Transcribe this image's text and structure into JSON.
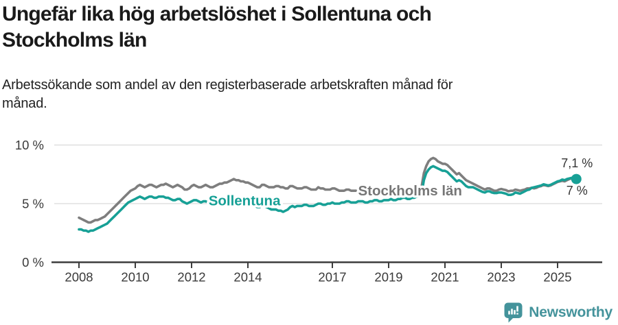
{
  "header": {
    "title_line1": "Ungefär lika hög arbetslöshet i Sollentuna och",
    "title_line2": "Stockholms län",
    "subtitle_line1": "Arbetssökande som andel av den registerbaserade arbetskraften månad för",
    "subtitle_line2": "månad."
  },
  "footer": {
    "brand": "Newsworthy",
    "logo_icon": "newsworthy-speech-bubble-bar-chart-icon"
  },
  "colors": {
    "title": "#1a1a1a",
    "text": "#333333",
    "axis": "#3c3c3c",
    "grid": "#d9d9d9",
    "sollentuna": "#17a096",
    "stockholms_lan": "#7e7e7e",
    "logo": "#44939b",
    "label_halo": "#ffffff"
  },
  "chart_data": {
    "type": "line",
    "title": "Ungefär lika hög arbetslöshet i Sollentuna och Stockholms län",
    "subtitle": "Arbetssökande som andel av den registerbaserade arbetskraften månad för månad.",
    "x_start_year": 2008,
    "points_per_year": 12,
    "x_ticks": [
      "2008",
      "2010",
      "2012",
      "2014",
      "2017",
      "2019",
      "2021",
      "2023",
      "2025"
    ],
    "y_ticks": [
      {
        "value": 0,
        "label": "0 %"
      },
      {
        "value": 5,
        "label": "5 %"
      },
      {
        "value": 10,
        "label": "10 %"
      }
    ],
    "ylim": [
      0,
      11.6
    ],
    "grid": "horizontal-only",
    "legend": "inline-labels-on-lines",
    "series": [
      {
        "name": "Stockholms län",
        "color": "#7e7e7e",
        "end_label": "7 %",
        "end_dot": false,
        "values": [
          3.8,
          3.7,
          3.6,
          3.5,
          3.4,
          3.4,
          3.5,
          3.6,
          3.6,
          3.7,
          3.8,
          3.9,
          4.1,
          4.3,
          4.5,
          4.7,
          4.9,
          5.1,
          5.3,
          5.5,
          5.7,
          5.9,
          6.1,
          6.2,
          6.3,
          6.5,
          6.6,
          6.5,
          6.4,
          6.5,
          6.6,
          6.6,
          6.5,
          6.4,
          6.5,
          6.6,
          6.6,
          6.7,
          6.6,
          6.5,
          6.4,
          6.5,
          6.6,
          6.5,
          6.4,
          6.2,
          6.2,
          6.3,
          6.5,
          6.6,
          6.5,
          6.4,
          6.4,
          6.5,
          6.6,
          6.5,
          6.4,
          6.4,
          6.5,
          6.6,
          6.7,
          6.7,
          6.8,
          6.8,
          6.9,
          7.0,
          7.1,
          7.0,
          7.0,
          6.9,
          6.9,
          6.8,
          6.8,
          6.7,
          6.6,
          6.5,
          6.4,
          6.4,
          6.6,
          6.6,
          6.5,
          6.4,
          6.4,
          6.4,
          6.5,
          6.5,
          6.4,
          6.4,
          6.3,
          6.3,
          6.5,
          6.5,
          6.4,
          6.3,
          6.3,
          6.3,
          6.4,
          6.4,
          6.3,
          6.2,
          6.2,
          6.2,
          6.4,
          6.3,
          6.3,
          6.2,
          6.2,
          6.2,
          6.3,
          6.3,
          6.2,
          6.1,
          6.1,
          6.1,
          6.2,
          6.2,
          6.1,
          6.1,
          6.1,
          6.1,
          6.2,
          6.1,
          6.1,
          6.0,
          6.0,
          6.0,
          6.1,
          6.1,
          6.0,
          6.0,
          6.0,
          6.0,
          6.1,
          6.0,
          6.0,
          5.9,
          5.9,
          6.0,
          6.1,
          6.1,
          6.0,
          6.0,
          6.0,
          6.1,
          6.1,
          6.2,
          6.4,
          7.6,
          8.2,
          8.6,
          8.8,
          8.9,
          8.8,
          8.6,
          8.5,
          8.4,
          8.4,
          8.3,
          8.1,
          7.9,
          7.7,
          7.5,
          7.6,
          7.4,
          7.2,
          7.0,
          6.9,
          6.8,
          6.7,
          6.6,
          6.5,
          6.4,
          6.3,
          6.2,
          6.3,
          6.3,
          6.2,
          6.1,
          6.1,
          6.2,
          6.25,
          6.2,
          6.15,
          6.05,
          6.1,
          6.1,
          6.2,
          6.15,
          6.1,
          6.15,
          6.2,
          6.3,
          6.3,
          6.35,
          6.3,
          6.35,
          6.45,
          6.5,
          6.6,
          6.55,
          6.5,
          6.55,
          6.65,
          6.75,
          6.85,
          6.9,
          6.95,
          6.9,
          7.0,
          7.1,
          7.15,
          7.05,
          7.0
        ]
      },
      {
        "name": "Sollentuna",
        "color": "#17a096",
        "end_label": "7,1 %",
        "end_dot": true,
        "values": [
          2.8,
          2.8,
          2.7,
          2.7,
          2.6,
          2.7,
          2.7,
          2.8,
          2.9,
          3.0,
          3.1,
          3.2,
          3.3,
          3.5,
          3.7,
          3.9,
          4.1,
          4.3,
          4.5,
          4.7,
          4.9,
          5.1,
          5.2,
          5.3,
          5.4,
          5.5,
          5.6,
          5.5,
          5.4,
          5.5,
          5.6,
          5.6,
          5.5,
          5.5,
          5.6,
          5.6,
          5.6,
          5.5,
          5.5,
          5.4,
          5.3,
          5.3,
          5.4,
          5.4,
          5.2,
          5.1,
          5.0,
          5.1,
          5.2,
          5.3,
          5.3,
          5.2,
          5.1,
          5.2,
          5.2,
          5.1,
          5.0,
          4.9,
          5.0,
          5.1,
          5.2,
          5.2,
          5.1,
          5.1,
          5.0,
          5.1,
          5.2,
          5.1,
          5.1,
          5.0,
          5.0,
          5.0,
          5.0,
          4.9,
          4.9,
          4.8,
          4.7,
          4.7,
          4.8,
          4.8,
          4.7,
          4.6,
          4.5,
          4.5,
          4.5,
          4.4,
          4.4,
          4.3,
          4.4,
          4.5,
          4.7,
          4.8,
          4.7,
          4.8,
          4.8,
          4.8,
          4.9,
          4.9,
          4.8,
          4.8,
          4.8,
          4.9,
          5.0,
          5.0,
          4.9,
          4.9,
          5.0,
          5.0,
          5.1,
          5.0,
          5.0,
          5.0,
          5.1,
          5.1,
          5.2,
          5.2,
          5.1,
          5.1,
          5.1,
          5.2,
          5.2,
          5.2,
          5.1,
          5.1,
          5.2,
          5.2,
          5.3,
          5.3,
          5.2,
          5.2,
          5.3,
          5.3,
          5.3,
          5.4,
          5.3,
          5.3,
          5.4,
          5.4,
          5.5,
          5.5,
          5.4,
          5.4,
          5.5,
          5.5,
          5.6,
          5.6,
          5.8,
          7.0,
          7.6,
          7.9,
          8.1,
          8.2,
          8.1,
          8.0,
          7.9,
          7.8,
          7.8,
          7.7,
          7.5,
          7.3,
          7.1,
          6.9,
          7.0,
          6.9,
          6.7,
          6.5,
          6.4,
          6.4,
          6.4,
          6.3,
          6.2,
          6.1,
          6.0,
          5.95,
          6.05,
          6.05,
          5.95,
          5.9,
          5.9,
          5.95,
          5.95,
          5.9,
          5.85,
          5.75,
          5.75,
          5.8,
          5.95,
          5.9,
          5.85,
          5.95,
          6.05,
          6.15,
          6.2,
          6.35,
          6.4,
          6.45,
          6.5,
          6.55,
          6.65,
          6.6,
          6.55,
          6.6,
          6.7,
          6.8,
          6.9,
          6.95,
          7.05,
          7.0,
          7.1,
          7.15,
          7.2,
          7.15,
          7.1
        ]
      }
    ],
    "annotations": [
      {
        "text": "Sollentuna",
        "color": "#17a096",
        "x_year": 2013.88,
        "y_value": 5.26
      },
      {
        "text": "Stockholms län",
        "color": "#767676",
        "x_year": 2019.76,
        "y_value": 6.11
      }
    ]
  }
}
